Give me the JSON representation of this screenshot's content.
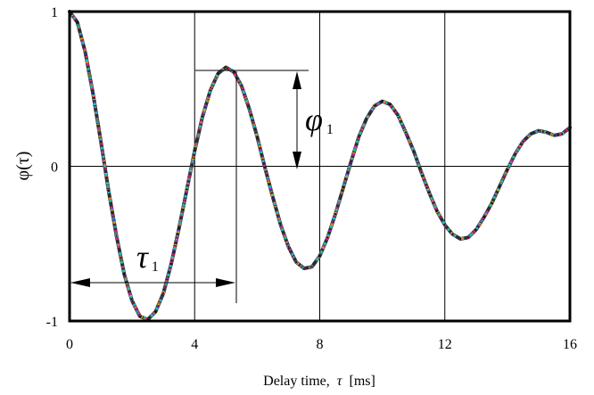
{
  "chart_data": {
    "type": "line",
    "title": "",
    "xlabel_prefix": "Delay time,",
    "xlabel_symbol": "τ",
    "xlabel_unit": "[ms]",
    "ylabel": "φ(τ)",
    "xlim": [
      0,
      16
    ],
    "ylim": [
      -1,
      1
    ],
    "x_ticks": [
      "0",
      "4",
      "8",
      "12",
      "16"
    ],
    "y_ticks": [
      "1",
      "0",
      "-1"
    ],
    "grid_vertical_at": [
      4,
      8,
      12
    ],
    "grid_horizontal_at": [
      0
    ],
    "series": [
      {
        "x": [
          0,
          0.25,
          0.5,
          0.75,
          1,
          1.25,
          1.5,
          1.75,
          2,
          2.25,
          2.5,
          2.75,
          3,
          3.25,
          3.5,
          3.75,
          4,
          4.25,
          4.5,
          4.75,
          5,
          5.25,
          5.5,
          5.75,
          6,
          6.25,
          6.5,
          6.75,
          7,
          7.25,
          7.5,
          7.75,
          8,
          8.25,
          8.5,
          8.75,
          9,
          9.25,
          9.5,
          9.75,
          10,
          10.25,
          10.5,
          10.75,
          11,
          11.25,
          11.5,
          11.75,
          12,
          12.25,
          12.5,
          12.75,
          13,
          13.25,
          13.5,
          13.75,
          14,
          14.25,
          14.5,
          14.75,
          15,
          15.25,
          15.5,
          15.75,
          16
        ],
        "y": [
          1.0,
          0.93,
          0.74,
          0.47,
          0.16,
          -0.16,
          -0.45,
          -0.7,
          -0.87,
          -0.97,
          -0.99,
          -0.94,
          -0.82,
          -0.63,
          -0.4,
          -0.15,
          0.1,
          0.32,
          0.49,
          0.6,
          0.64,
          0.61,
          0.52,
          0.37,
          0.19,
          -0.01,
          -0.2,
          -0.38,
          -0.52,
          -0.62,
          -0.66,
          -0.65,
          -0.58,
          -0.46,
          -0.31,
          -0.14,
          0.03,
          0.19,
          0.31,
          0.39,
          0.42,
          0.4,
          0.33,
          0.22,
          0.1,
          -0.04,
          -0.17,
          -0.29,
          -0.38,
          -0.44,
          -0.47,
          -0.46,
          -0.41,
          -0.33,
          -0.24,
          -0.13,
          -0.02,
          0.08,
          0.16,
          0.21,
          0.23,
          0.22,
          0.2,
          0.21,
          0.25
        ]
      }
    ],
    "annotations": {
      "phi": {
        "symbol": "φ",
        "subscript": "1"
      },
      "tau": {
        "symbol": "τ",
        "subscript": "1"
      }
    },
    "grid": true
  }
}
